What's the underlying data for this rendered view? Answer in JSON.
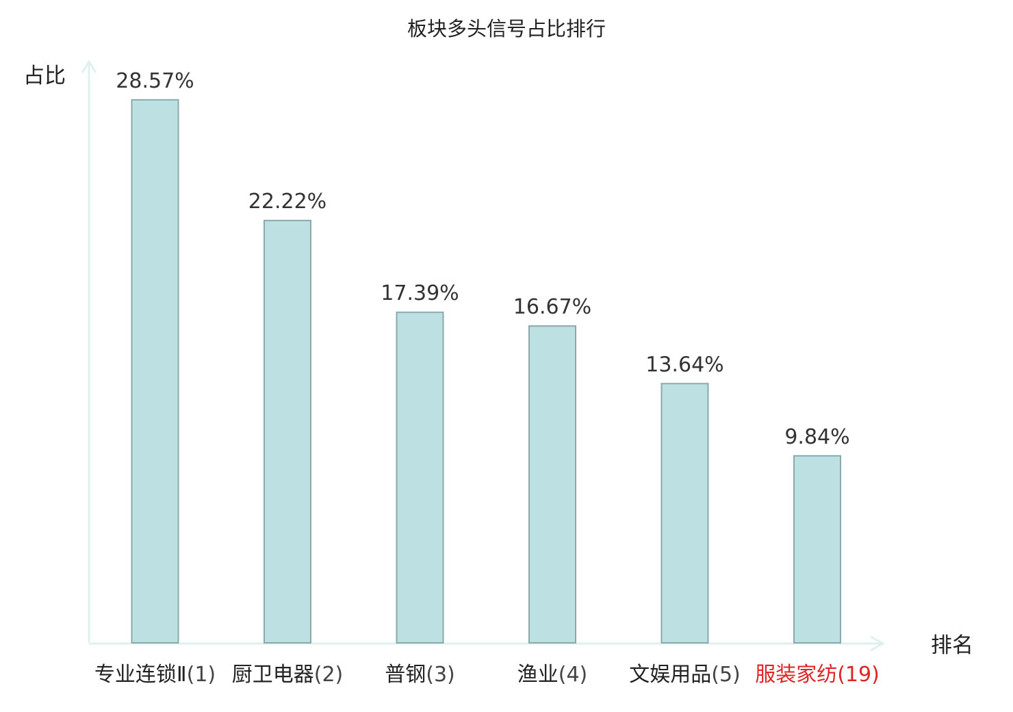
{
  "chart_data": {
    "type": "bar",
    "title": "板块多头信号占比排行",
    "ylabel": "占比",
    "xlabel": "排名",
    "ylim": [
      0,
      29.5
    ],
    "value_unit": "%",
    "categories": [
      {
        "name": "专业连锁Ⅱ",
        "rank": "(1)",
        "highlight": false
      },
      {
        "name": "厨卫电器",
        "rank": "(2)",
        "highlight": false
      },
      {
        "name": "普钢",
        "rank": "(3)",
        "highlight": false
      },
      {
        "name": "渔业",
        "rank": "(4)",
        "highlight": false
      },
      {
        "name": "文娱用品",
        "rank": "(5)",
        "highlight": false
      },
      {
        "name": "服装家纺",
        "rank": "(19)",
        "highlight": true
      }
    ],
    "values": [
      28.57,
      22.22,
      17.39,
      16.67,
      13.64,
      9.84
    ],
    "value_labels": [
      "28.57%",
      "22.22%",
      "17.39%",
      "16.67%",
      "13.64%",
      "9.84%"
    ],
    "grid": false,
    "colors": {
      "bar_fill": "#bde0e2",
      "bar_stroke": "#8aa9ab",
      "axis": "#dff0ee",
      "highlight": "#e02424"
    }
  }
}
